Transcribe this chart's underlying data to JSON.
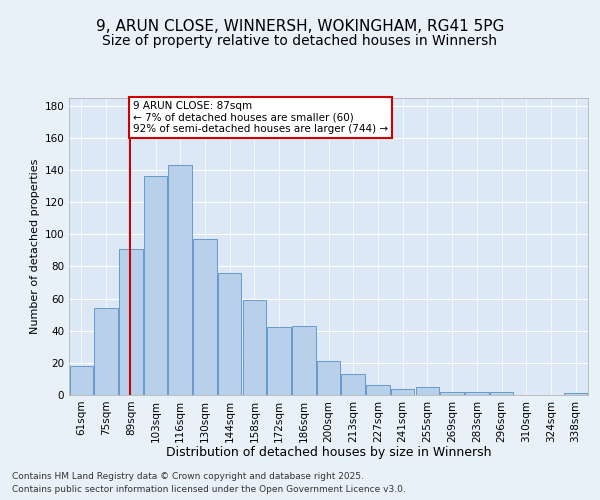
{
  "title": "9, ARUN CLOSE, WINNERSH, WOKINGHAM, RG41 5PG",
  "subtitle": "Size of property relative to detached houses in Winnersh",
  "xlabel": "Distribution of detached houses by size in Winnersh",
  "ylabel": "Number of detached properties",
  "categories": [
    "61sqm",
    "75sqm",
    "89sqm",
    "103sqm",
    "116sqm",
    "130sqm",
    "144sqm",
    "158sqm",
    "172sqm",
    "186sqm",
    "200sqm",
    "213sqm",
    "227sqm",
    "241sqm",
    "255sqm",
    "269sqm",
    "283sqm",
    "296sqm",
    "310sqm",
    "324sqm",
    "338sqm"
  ],
  "values": [
    18,
    54,
    91,
    136,
    143,
    97,
    76,
    59,
    42,
    43,
    21,
    13,
    6,
    4,
    5,
    2,
    2,
    2,
    0,
    0,
    1
  ],
  "bar_color": "#b8d0ea",
  "bar_edge_color": "#6699cc",
  "annotation_line_bin": 2.0,
  "annotation_box_text": "9 ARUN CLOSE: 87sqm\n← 7% of detached houses are smaller (60)\n92% of semi-detached houses are larger (744) →",
  "annotation_box_color": "#ffffff",
  "annotation_box_edge_color": "#cc0000",
  "ylim": [
    0,
    185
  ],
  "yticks": [
    0,
    20,
    40,
    60,
    80,
    100,
    120,
    140,
    160,
    180
  ],
  "footnote1": "Contains HM Land Registry data © Crown copyright and database right 2025.",
  "footnote2": "Contains public sector information licensed under the Open Government Licence v3.0.",
  "bg_color": "#e8f0f8",
  "plot_bg_color": "#dce8f5",
  "grid_color": "#ffffff",
  "title_fontsize": 11,
  "subtitle_fontsize": 10,
  "xlabel_fontsize": 9,
  "ylabel_fontsize": 8,
  "tick_fontsize": 7.5,
  "annotation_fontsize": 7.5,
  "footnote_fontsize": 6.5
}
